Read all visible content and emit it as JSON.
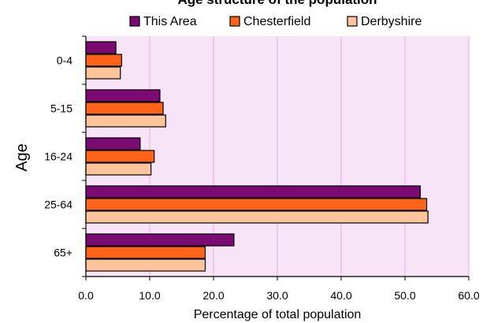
{
  "chart_data": {
    "type": "bar",
    "orientation": "horizontal",
    "title": "Age structure of the population",
    "xlabel": "Percentage of total population",
    "ylabel": "Age",
    "categories": [
      "0-4",
      "5-15",
      "16-24",
      "25-64",
      "65+"
    ],
    "series": [
      {
        "name": "This Area",
        "color": "#7b0a73",
        "values": [
          4.7,
          11.6,
          8.5,
          52.4,
          23.2
        ]
      },
      {
        "name": "Chesterfield",
        "color": "#ff6319",
        "values": [
          5.6,
          12.1,
          10.7,
          53.4,
          18.7
        ]
      },
      {
        "name": "Derbyshire",
        "color": "#ffc49a",
        "values": [
          5.4,
          12.5,
          10.2,
          53.6,
          18.7
        ]
      }
    ],
    "xlim": [
      0,
      60
    ],
    "xticks": [
      "0.0",
      "10.0",
      "20.0",
      "30.0",
      "40.0",
      "50.0",
      "60.0"
    ],
    "grid": "vertical",
    "legend_position": "top",
    "plot_background": "#f7e4f7",
    "grid_color": "#dcb2dc"
  }
}
